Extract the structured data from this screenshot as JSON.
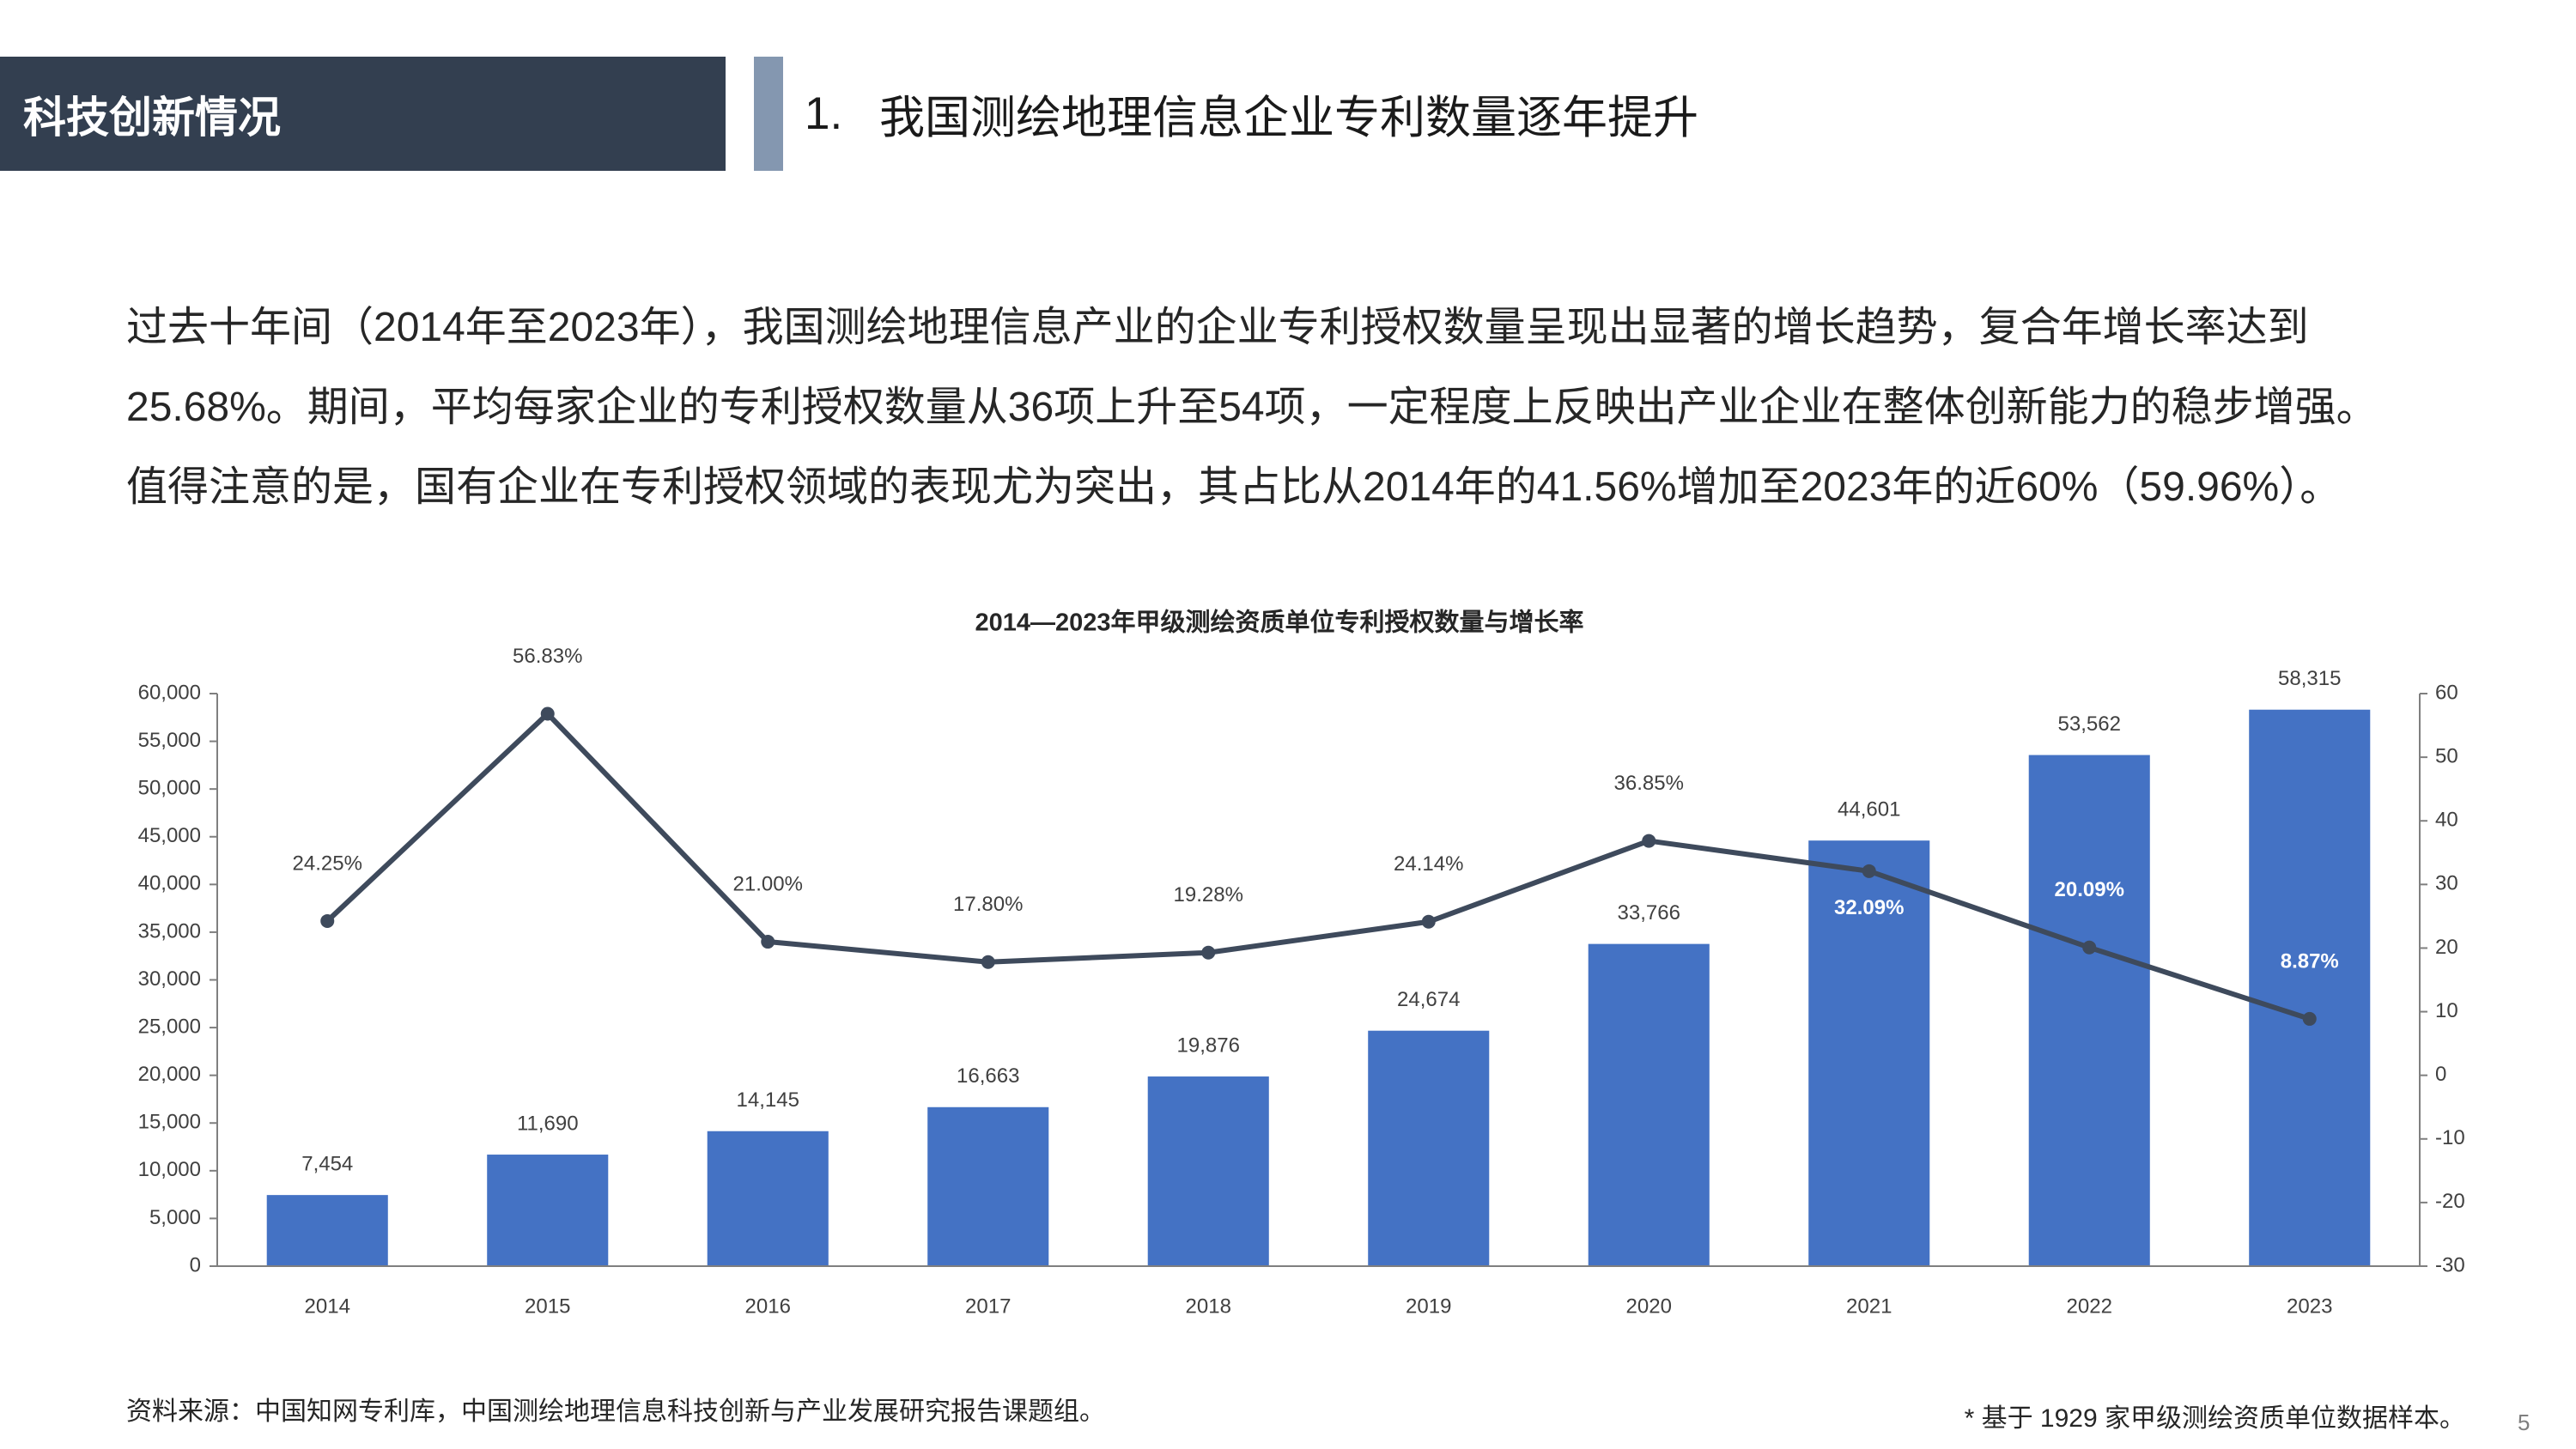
{
  "header": {
    "section_title": "科技创新情况",
    "slide_title_number": "1.",
    "slide_title_text": "我国测绘地理信息企业专利数量逐年提升"
  },
  "body": {
    "paragraph_lines": [
      "过去十年间（2014年至2023年），我国测绘地理信息产业的企业专利授权数量呈现出显著的增长趋势，复合年增长率达到",
      "25.68%。期间，平均每家企业的专利授权数量从36项上升至54项，一定程度上反映出产业企业在整体创新能力的稳步增强。",
      "值得注意的是，国有企业在专利授权领域的表现尤为突出，其占比从2014年的41.56%增加至2023年的近60%（59.96%）。"
    ]
  },
  "chart_data": {
    "type": "bar",
    "title": "2014—2023年甲级测绘资质单位专利授权数量与增长率",
    "categories": [
      "2014",
      "2015",
      "2016",
      "2017",
      "2018",
      "2019",
      "2020",
      "2021",
      "2022",
      "2023"
    ],
    "series": [
      {
        "type": "bar",
        "axis": "left",
        "values": [
          7454,
          11690,
          14145,
          16663,
          19876,
          24674,
          33766,
          44601,
          53562,
          58315
        ],
        "labels": [
          "7,454",
          "11,690",
          "14,145",
          "16,663",
          "19,876",
          "24,674",
          "33,766",
          "44,601",
          "53,562",
          "58,315"
        ]
      },
      {
        "type": "line",
        "axis": "right",
        "values": [
          24.25,
          56.83,
          21.0,
          17.8,
          19.28,
          24.14,
          36.85,
          32.09,
          20.09,
          8.87
        ],
        "labels": [
          "24.25%",
          "56.83%",
          "21.00%",
          "17.80%",
          "19.28%",
          "24.14%",
          "36.85%",
          "32.09%",
          "20.09%",
          "8.87%"
        ]
      }
    ],
    "y_left": {
      "range": [
        0,
        60000
      ],
      "tick_labels": [
        "0",
        "5,000",
        "10,000",
        "15,000",
        "20,000",
        "25,000",
        "30,000",
        "35,000",
        "40,000",
        "45,000",
        "50,000",
        "55,000",
        "60,000"
      ]
    },
    "y_right": {
      "range": [
        -30,
        60
      ],
      "tick_labels": [
        "-30",
        "-20",
        "-10",
        "0",
        "10",
        "20",
        "30",
        "40",
        "50",
        "60"
      ]
    },
    "grid": false,
    "legend": "none",
    "colors": {
      "bar": "#4472C4",
      "line": "#3E4A5C",
      "axis": "#7F7F7F"
    }
  },
  "footer": {
    "source": "资料来源：中国知网专利库，中国测绘地理信息科技创新与产业发展研究报告课题组。",
    "note": "* 基于 1929 家甲级测绘资质单位数据样本。",
    "page_number": "5"
  },
  "colors": {
    "section_bar": "#333F50",
    "accent_bar": "#8497B0"
  }
}
